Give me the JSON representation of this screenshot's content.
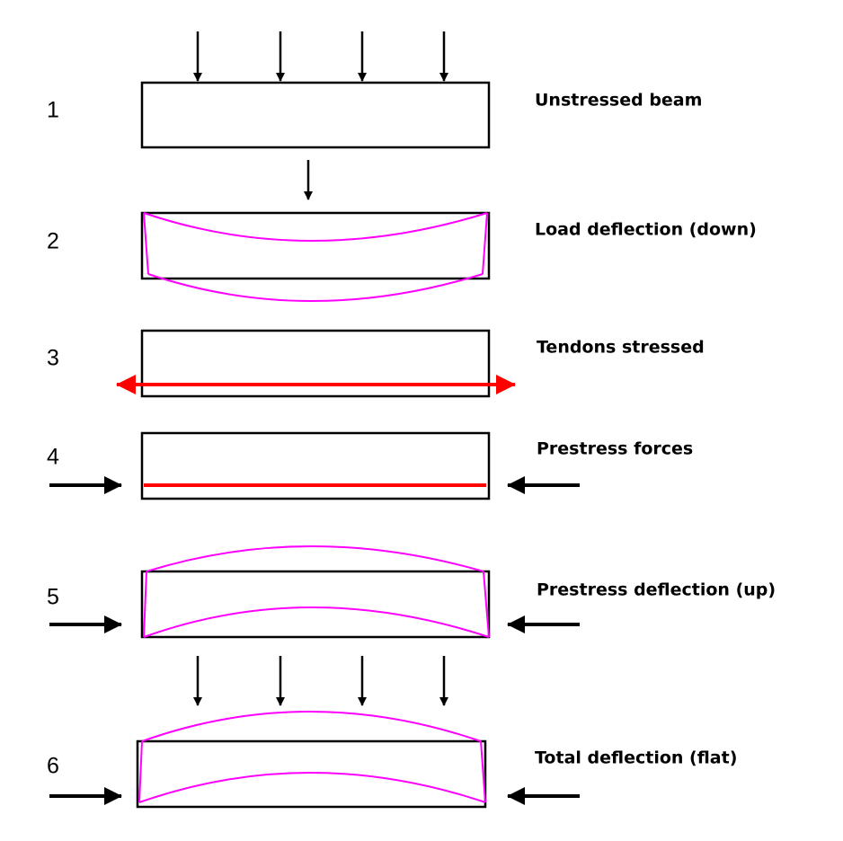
{
  "steps": [
    {
      "number": "1",
      "label": "Unstressed beam"
    },
    {
      "number": "2",
      "label": "Load deflection (down)"
    },
    {
      "number": "3",
      "label": "Tendons stressed"
    },
    {
      "number": "4",
      "label": "Prestress forces"
    },
    {
      "number": "5",
      "label": "Prestress deflection (up)"
    },
    {
      "number": "6",
      "label": "Total deflection (flat)"
    }
  ]
}
